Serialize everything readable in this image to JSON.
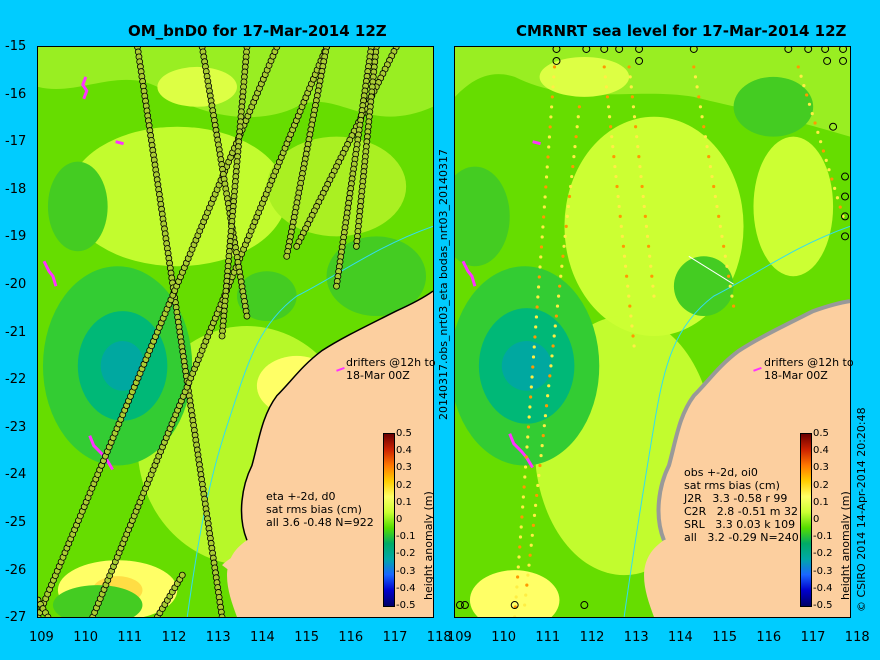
{
  "left": {
    "title": "OM_bnD0 for 17-Mar-2014 12Z",
    "drifters": "drifters @12h to\n18-Mar 00Z",
    "stats_title": "eta +-2d, d0",
    "stats_sub": "sat rms bias (cm)",
    "stats_rows": [
      "all 3.6 -0.48 N=922"
    ]
  },
  "right": {
    "title": "CMRNRT sea level  for 17-Mar-2014 12Z",
    "drifters": "drifters @12h to\n18-Mar 00Z",
    "stats_title": "obs +-2d, oi0",
    "stats_sub": "sat rms bias (cm)",
    "stats_rows": [
      "J2R   3.3 -0.58 r 99",
      "C2R   2.8 -0.51 m 32",
      "SRL   3.3 0.03 k 109",
      "all   3.2 -0.29 N=240"
    ]
  },
  "lat_ticks": [
    "-15",
    "-16",
    "-17",
    "-18",
    "-19",
    "-20",
    "-21",
    "-22",
    "-23",
    "-24",
    "-25",
    "-26",
    "-27"
  ],
  "lon_ticks_left": [
    "109",
    "110",
    "111",
    "112",
    "113",
    "114",
    "115",
    "116",
    "117",
    "118"
  ],
  "lon_ticks_right": [
    "109",
    "110",
    "111",
    "112",
    "113",
    "114",
    "115",
    "116",
    "117",
    "118"
  ],
  "middle_label": "20140317.obs_nrt03_eta     bodas_nrt03_20140317",
  "credit": "© CSIRO 2014   14-Apr-2014 20:20:48",
  "colorbar": {
    "title": "height anomaly (m)",
    "labels": [
      "0.5",
      "0.4",
      "0.3",
      "0.2",
      "0.1",
      "0",
      "-0.1",
      "-0.2",
      "-0.3",
      "-0.4",
      "-0.5"
    ]
  },
  "colors": {
    "background": "#00ccff",
    "land": "#fccf9f",
    "ocean_mid": "#66dd00"
  }
}
